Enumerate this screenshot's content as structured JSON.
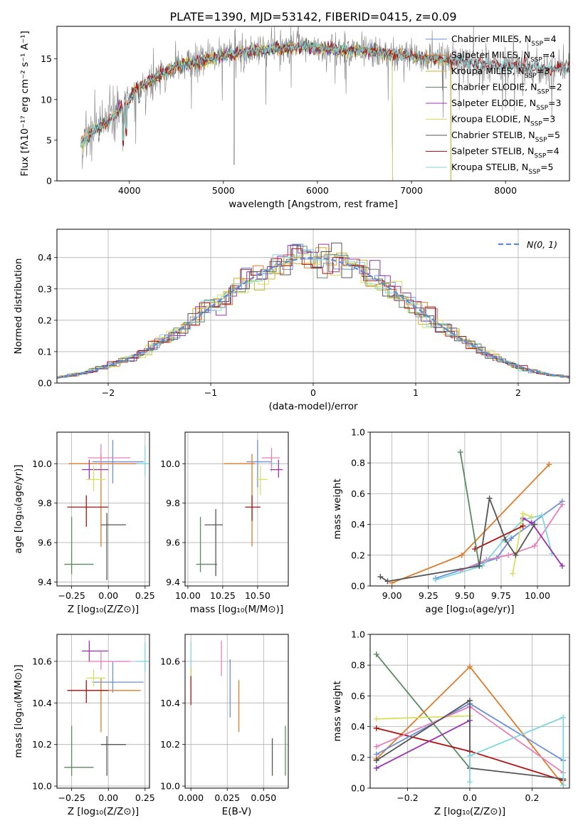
{
  "figure": {
    "title": "PLATE=1390, MJD=53142, FIBERID=0415, z=0.09"
  },
  "chart_data": [
    {
      "id": "spectrum",
      "type": "line",
      "xlabel": "wavelength [Angstrom, rest frame]",
      "ylabel": "Flux [fλ10⁻¹⁷ erg cm⁻² s⁻¹ A⁻¹]",
      "xlim": [
        3230,
        8680
      ],
      "ylim": [
        0,
        19
      ],
      "xticks": [
        4000,
        5000,
        6000,
        7000,
        8000
      ],
      "yticks": [
        0,
        5,
        10,
        15
      ],
      "grid": false,
      "legend_position": "upper-right",
      "continuum": {
        "x": [
          3500,
          3550,
          3600,
          3700,
          3800,
          3900,
          3980,
          4050,
          4150,
          4300,
          4500,
          4700,
          4900,
          5100,
          5300,
          5500,
          5700,
          5900,
          6100,
          6300,
          6500,
          6700,
          6900,
          7100,
          7300,
          7500,
          7700,
          7900,
          8100,
          8300
        ],
        "y": [
          4.8,
          5.2,
          6.0,
          6.8,
          7.6,
          8.8,
          9.2,
          11.0,
          11.8,
          12.8,
          14.0,
          14.6,
          15.1,
          15.6,
          16.0,
          16.2,
          16.4,
          16.4,
          16.2,
          16.1,
          16.0,
          15.7,
          15.4,
          15.1,
          14.9,
          14.7,
          14.4,
          14.2,
          14.1,
          13.9
        ]
      },
      "series": [
        {
          "label": "Chabrier MILES, N",
          "sub": "SSP",
          "suffix": "=4",
          "color": "#6a8fdc",
          "xmax": 7420
        },
        {
          "label": "Salpeter MILES, N",
          "sub": "SSP",
          "suffix": "=4",
          "color": "#e07b27",
          "xmax": 7420
        },
        {
          "label": "Kroupa MILES, N",
          "sub": "SSP",
          "suffix": "=3",
          "color": "#c9b52a",
          "xmax": 7420
        },
        {
          "label": "Chabrier ELODIE, N",
          "sub": "SSP",
          "suffix": "=2",
          "color": "#5a8a60",
          "xmax": 6800
        },
        {
          "label": "Salpeter ELODIE, N",
          "sub": "SSP",
          "suffix": "=3",
          "color": "#9b30b0",
          "xmax": 6800
        },
        {
          "label": "Kroupa ELODIE, N",
          "sub": "SSP",
          "suffix": "=3",
          "color": "#d8e060",
          "xmax": 6800
        },
        {
          "label": "Chabrier STELIB, N",
          "sub": "SSP",
          "suffix": "=5",
          "color": "#555555",
          "xmax": 8700
        },
        {
          "label": "Salpeter STELIB, N",
          "sub": "SSP",
          "suffix": "=4",
          "color": "#b01010",
          "xmax": 8700
        },
        {
          "label": "Kroupa STELIB, N",
          "sub": "SSP",
          "suffix": "=5",
          "color": "#7fd6dc",
          "xmax": 8700
        }
      ],
      "data_color": "#808080"
    },
    {
      "id": "residuals",
      "type": "line",
      "xlabel": "(data-model)/error",
      "ylabel": "Normed distribution",
      "xlim": [
        -2.5,
        2.5
      ],
      "ylim": [
        0,
        0.49
      ],
      "xticks": [
        -2,
        -1,
        0,
        1,
        2
      ],
      "yticks": [
        0.0,
        0.1,
        0.2,
        0.3,
        0.4
      ],
      "grid": true,
      "legend_position": "upper-right",
      "gaussian": {
        "label": "N(0, 1)",
        "color": "#5b8ad8"
      },
      "histogram_colors": [
        "#6a8fdc",
        "#e07b27",
        "#c9b52a",
        "#5a8a60",
        "#9b30b0",
        "#d8e060",
        "#555555",
        "#b01010",
        "#7fd6dc"
      ]
    },
    {
      "id": "age_vs_Z",
      "type": "scatter",
      "xlabel": "Z [log₁₀(Z/Z⊙)]",
      "ylabel": "age  [log₁₀(age/yr)]",
      "xlim": [
        -0.35,
        0.28
      ],
      "ylim": [
        9.38,
        10.16
      ],
      "xticks": [
        -0.25,
        0.0,
        0.25
      ],
      "xticklabels": [
        "−0.25",
        "0.00",
        "0.25"
      ],
      "yticks": [
        9.4,
        9.6,
        9.8,
        10.0
      ],
      "grid": true,
      "points": [
        {
          "x": 0.03,
          "y": 10.01,
          "xerr": [
            0.14,
            0.21
          ],
          "yerr": [
            0.11,
            0.11
          ],
          "color": "#6a8fdc"
        },
        {
          "x": -0.05,
          "y": 10.0,
          "xerr": [
            0.22,
            0.27
          ],
          "yerr": [
            0.42,
            0.05
          ],
          "color": "#e07b27"
        },
        {
          "x": 0.25,
          "y": 10.0,
          "xerr": [
            0.06,
            0.02
          ],
          "yerr": [
            0.06,
            0.09
          ],
          "color": "#7fd6dc"
        },
        {
          "x": -0.13,
          "y": 9.97,
          "xerr": [
            0.05,
            0.13
          ],
          "yerr": [
            0.05,
            0.05
          ],
          "color": "#9b30b0"
        },
        {
          "x": -0.05,
          "y": 10.03,
          "xerr": [
            0.09,
            0.2
          ],
          "yerr": [
            0.04,
            0.07
          ],
          "color": "#e880b8"
        },
        {
          "x": -0.1,
          "y": 9.92,
          "xerr": [
            0.05,
            0.08
          ],
          "yerr": [
            0.06,
            0.07
          ],
          "color": "#d8e060"
        },
        {
          "x": -0.15,
          "y": 9.78,
          "xerr": [
            0.13,
            0.15
          ],
          "yerr": [
            0.1,
            0.06
          ],
          "color": "#b01010"
        },
        {
          "x": -0.25,
          "y": 9.49,
          "xerr": [
            0.05,
            0.15
          ],
          "yerr": [
            0.05,
            0.24
          ],
          "color": "#5a8a60"
        },
        {
          "x": -0.01,
          "y": 9.69,
          "xerr": [
            0.04,
            0.13
          ],
          "yerr": [
            0.28,
            0.06
          ],
          "color": "#555555"
        }
      ]
    },
    {
      "id": "age_vs_mass",
      "type": "scatter",
      "xlabel": "mass [log₁₀(M/M⊙)]",
      "ylabel": "",
      "xlim": [
        9.98,
        10.72
      ],
      "ylim": [
        9.38,
        10.16
      ],
      "xticks": [
        10.0,
        10.25,
        10.5
      ],
      "xticklabels": [
        "10.00",
        "10.25",
        "10.50"
      ],
      "yticks": [
        9.4,
        9.6,
        9.8,
        10.0
      ],
      "grid": true,
      "points": [
        {
          "x": 10.5,
          "y": 10.01,
          "xerr": [
            0.08,
            0.1
          ],
          "yerr": [
            0.13,
            0.11
          ],
          "color": "#6a8fdc"
        },
        {
          "x": 10.46,
          "y": 10.0,
          "xerr": [
            0.2,
            0.02
          ],
          "yerr": [
            0.42,
            0.05
          ],
          "color": "#e07b27"
        },
        {
          "x": 10.6,
          "y": 10.0,
          "xerr": [
            0.02,
            0.04
          ],
          "yerr": [
            0.04,
            0.04
          ],
          "color": "#7fd6dc"
        },
        {
          "x": 10.65,
          "y": 9.97,
          "xerr": [
            0.06,
            0.03
          ],
          "yerr": [
            0.04,
            0.05
          ],
          "color": "#9b30b0"
        },
        {
          "x": 10.6,
          "y": 10.03,
          "xerr": [
            0.07,
            0.06
          ],
          "yerr": [
            0.05,
            0.05
          ],
          "color": "#e880b8"
        },
        {
          "x": 10.52,
          "y": 9.92,
          "xerr": [
            0.03,
            0.05
          ],
          "yerr": [
            0.08,
            0.07
          ],
          "color": "#d8e060"
        },
        {
          "x": 10.46,
          "y": 9.78,
          "xerr": [
            0.05,
            0.06
          ],
          "yerr": [
            0.07,
            0.06
          ],
          "color": "#b01010"
        },
        {
          "x": 10.09,
          "y": 9.49,
          "xerr": [
            0.03,
            0.12
          ],
          "yerr": [
            0.04,
            0.24
          ],
          "color": "#5a8a60"
        },
        {
          "x": 10.2,
          "y": 9.69,
          "xerr": [
            0.08,
            0.05
          ],
          "yerr": [
            0.26,
            0.08
          ],
          "color": "#555555"
        }
      ]
    },
    {
      "id": "weight_vs_age",
      "type": "line",
      "xlabel": "age  [log₁₀(age/yr)]",
      "ylabel": "mass weight",
      "xlim": [
        8.85,
        10.22
      ],
      "ylim": [
        0,
        1.0
      ],
      "xticks": [
        9.0,
        9.25,
        9.5,
        9.75,
        10.0
      ],
      "xticklabels": [
        "9.00",
        "9.25",
        "9.50",
        "9.75",
        "10.00"
      ],
      "yticks": [
        0.0,
        0.2,
        0.4,
        0.6,
        0.8,
        1.0
      ],
      "grid": true,
      "series": [
        {
          "color": "#e07b27",
          "x": [
            9.0,
            9.48,
            10.08
          ],
          "y": [
            0.02,
            0.2,
            0.79
          ]
        },
        {
          "color": "#6a8fdc",
          "x": [
            9.3,
            9.72,
            9.82,
            10.17
          ],
          "y": [
            0.05,
            0.18,
            0.31,
            0.55
          ]
        },
        {
          "color": "#e880b8",
          "x": [
            9.47,
            9.65,
            9.8,
            9.98,
            10.17
          ],
          "y": [
            0.1,
            0.17,
            0.2,
            0.26,
            0.53
          ]
        },
        {
          "color": "#7fd6dc",
          "x": [
            9.3,
            9.62,
            9.77,
            9.9,
            10.03,
            10.1
          ],
          "y": [
            0.04,
            0.13,
            0.3,
            0.43,
            0.46,
            0.21
          ]
        },
        {
          "color": "#9b30b0",
          "x": [
            9.9,
            9.96,
            10.17
          ],
          "y": [
            0.44,
            0.41,
            0.13
          ]
        },
        {
          "color": "#d8e060",
          "x": [
            9.83,
            9.9,
            9.96
          ],
          "y": [
            0.08,
            0.47,
            0.45
          ]
        },
        {
          "color": "#b01010",
          "x": [
            9.57,
            9.9
          ],
          "y": [
            0.24,
            0.39
          ]
        },
        {
          "color": "#5a8a60",
          "x": [
            9.47,
            9.6
          ],
          "y": [
            0.87,
            0.13
          ]
        },
        {
          "color": "#555555",
          "x": [
            8.92,
            8.97,
            9.6,
            9.67,
            9.78,
            9.85,
            9.98
          ],
          "y": [
            0.06,
            0.03,
            0.13,
            0.57,
            0.3,
            0.2,
            0.4
          ]
        }
      ]
    },
    {
      "id": "mass_vs_Z",
      "type": "scatter",
      "xlabel": "Z [log₁₀(Z/Z⊙)]",
      "ylabel": "mass [log₁₀(M/M⊙)]",
      "xlim": [
        -0.35,
        0.28
      ],
      "ylim": [
        9.99,
        10.73
      ],
      "xticks": [
        -0.25,
        0.0,
        0.25
      ],
      "xticklabels": [
        "−0.25",
        "0.00",
        "0.25"
      ],
      "yticks": [
        10.0,
        10.2,
        10.4,
        10.6
      ],
      "grid": true,
      "points": [
        {
          "x": 0.03,
          "y": 10.5,
          "xerr": [
            0.14,
            0.21
          ],
          "yerr": [
            0.05,
            0.1
          ],
          "color": "#6a8fdc"
        },
        {
          "x": -0.05,
          "y": 10.46,
          "xerr": [
            0.22,
            0.27
          ],
          "yerr": [
            0.2,
            0.06
          ],
          "color": "#e07b27"
        },
        {
          "x": 0.25,
          "y": 10.6,
          "xerr": [
            0.06,
            0.02
          ],
          "yerr": [
            0.05,
            0.09
          ],
          "color": "#7fd6dc"
        },
        {
          "x": -0.13,
          "y": 10.65,
          "xerr": [
            0.05,
            0.13
          ],
          "yerr": [
            0.05,
            0.05
          ],
          "color": "#9b30b0"
        },
        {
          "x": -0.05,
          "y": 10.6,
          "xerr": [
            0.09,
            0.2
          ],
          "yerr": [
            0.04,
            0.05
          ],
          "color": "#e880b8"
        },
        {
          "x": -0.1,
          "y": 10.52,
          "xerr": [
            0.05,
            0.08
          ],
          "yerr": [
            0.04,
            0.04
          ],
          "color": "#d8e060"
        },
        {
          "x": -0.15,
          "y": 10.46,
          "xerr": [
            0.13,
            0.15
          ],
          "yerr": [
            0.06,
            0.05
          ],
          "color": "#b01010"
        },
        {
          "x": -0.25,
          "y": 10.09,
          "xerr": [
            0.05,
            0.15
          ],
          "yerr": [
            0.04,
            0.2
          ],
          "color": "#5a8a60"
        },
        {
          "x": -0.01,
          "y": 10.2,
          "xerr": [
            0.04,
            0.13
          ],
          "yerr": [
            0.15,
            0.04
          ],
          "color": "#555555"
        }
      ]
    },
    {
      "id": "mass_vs_ebv",
      "type": "scatter",
      "xlabel": "E(B-V)",
      "ylabel": "",
      "xlim": [
        -0.004,
        0.067
      ],
      "ylim": [
        9.99,
        10.73
      ],
      "xticks": [
        0.0,
        0.025,
        0.05
      ],
      "xticklabels": [
        "0.000",
        "0.025",
        "0.050"
      ],
      "yticks": [
        10.0,
        10.2,
        10.4,
        10.6
      ],
      "grid": true,
      "points": [
        {
          "x": 0.0,
          "y": 10.6,
          "xerr": [
            0,
            0
          ],
          "yerr": [
            0.04,
            0.09
          ],
          "color": "#7fd6dc"
        },
        {
          "x": 0.0,
          "y": 10.5,
          "xerr": [
            0,
            0
          ],
          "yerr": [
            0.11,
            0.07
          ],
          "color": "#b01010"
        },
        {
          "x": 0.0,
          "y": 10.55,
          "xerr": [
            0,
            0
          ],
          "yerr": [
            0.02,
            0.02
          ],
          "color": "#d8e060"
        },
        {
          "x": 0.021,
          "y": 10.6,
          "xerr": [
            0,
            0
          ],
          "yerr": [
            0.07,
            0.1
          ],
          "color": "#e880b8"
        },
        {
          "x": 0.027,
          "y": 10.47,
          "xerr": [
            0,
            0
          ],
          "yerr": [
            0.14,
            0.14
          ],
          "color": "#6a8fdc"
        },
        {
          "x": 0.033,
          "y": 10.39,
          "xerr": [
            0,
            0
          ],
          "yerr": [
            0.13,
            0.12
          ],
          "color": "#e07b27"
        },
        {
          "x": 0.056,
          "y": 10.13,
          "xerr": [
            0,
            0
          ],
          "yerr": [
            0.08,
            0.1
          ],
          "color": "#555555"
        },
        {
          "x": 0.065,
          "y": 10.17,
          "xerr": [
            0,
            0
          ],
          "yerr": [
            0.12,
            0.12
          ],
          "color": "#5a8a60"
        }
      ]
    },
    {
      "id": "weight_vs_Z",
      "type": "line",
      "xlabel": "Z [log₁₀(Z/Z⊙)]",
      "ylabel": "mass weight",
      "xlim": [
        -0.32,
        0.32
      ],
      "ylim": [
        0,
        1.0
      ],
      "xticks": [
        -0.2,
        0.0,
        0.2
      ],
      "xticklabels": [
        "−0.2",
        "0.0",
        "0.2"
      ],
      "yticks": [
        0.0,
        0.2,
        0.4,
        0.6,
        0.8,
        1.0
      ],
      "grid": true,
      "series": [
        {
          "color": "#5a8a60",
          "x": [
            -0.3,
            0.0
          ],
          "y": [
            0.87,
            0.13
          ]
        },
        {
          "color": "#e07b27",
          "x": [
            -0.3,
            0.0,
            0.3
          ],
          "y": [
            0.19,
            0.79,
            0.02
          ]
        },
        {
          "color": "#d8e060",
          "x": [
            -0.3,
            0.0
          ],
          "y": [
            0.45,
            0.47
          ]
        },
        {
          "color": "#b01010",
          "x": [
            -0.3,
            0.0,
            0.3
          ],
          "y": [
            0.39,
            0.24,
            0.05
          ]
        },
        {
          "color": "#9b30b0",
          "x": [
            -0.3,
            0.0
          ],
          "y": [
            0.13,
            0.44
          ]
        },
        {
          "color": "#6a8fdc",
          "x": [
            -0.3,
            0.0,
            0.3
          ],
          "y": [
            0.22,
            0.55,
            0.18
          ]
        },
        {
          "color": "#e880b8",
          "x": [
            -0.3,
            0.0,
            0.3
          ],
          "y": [
            0.27,
            0.53,
            0.1
          ]
        },
        {
          "color": "#555555",
          "x": [
            -0.3,
            0.0,
            0.0,
            0.3
          ],
          "y": [
            0.18,
            0.57,
            0.13,
            0.06
          ]
        },
        {
          "color": "#7fd6dc",
          "x": [
            0.0,
            0.0,
            0.3,
            0.3
          ],
          "y": [
            0.04,
            0.21,
            0.46,
            0.02
          ]
        }
      ]
    }
  ]
}
